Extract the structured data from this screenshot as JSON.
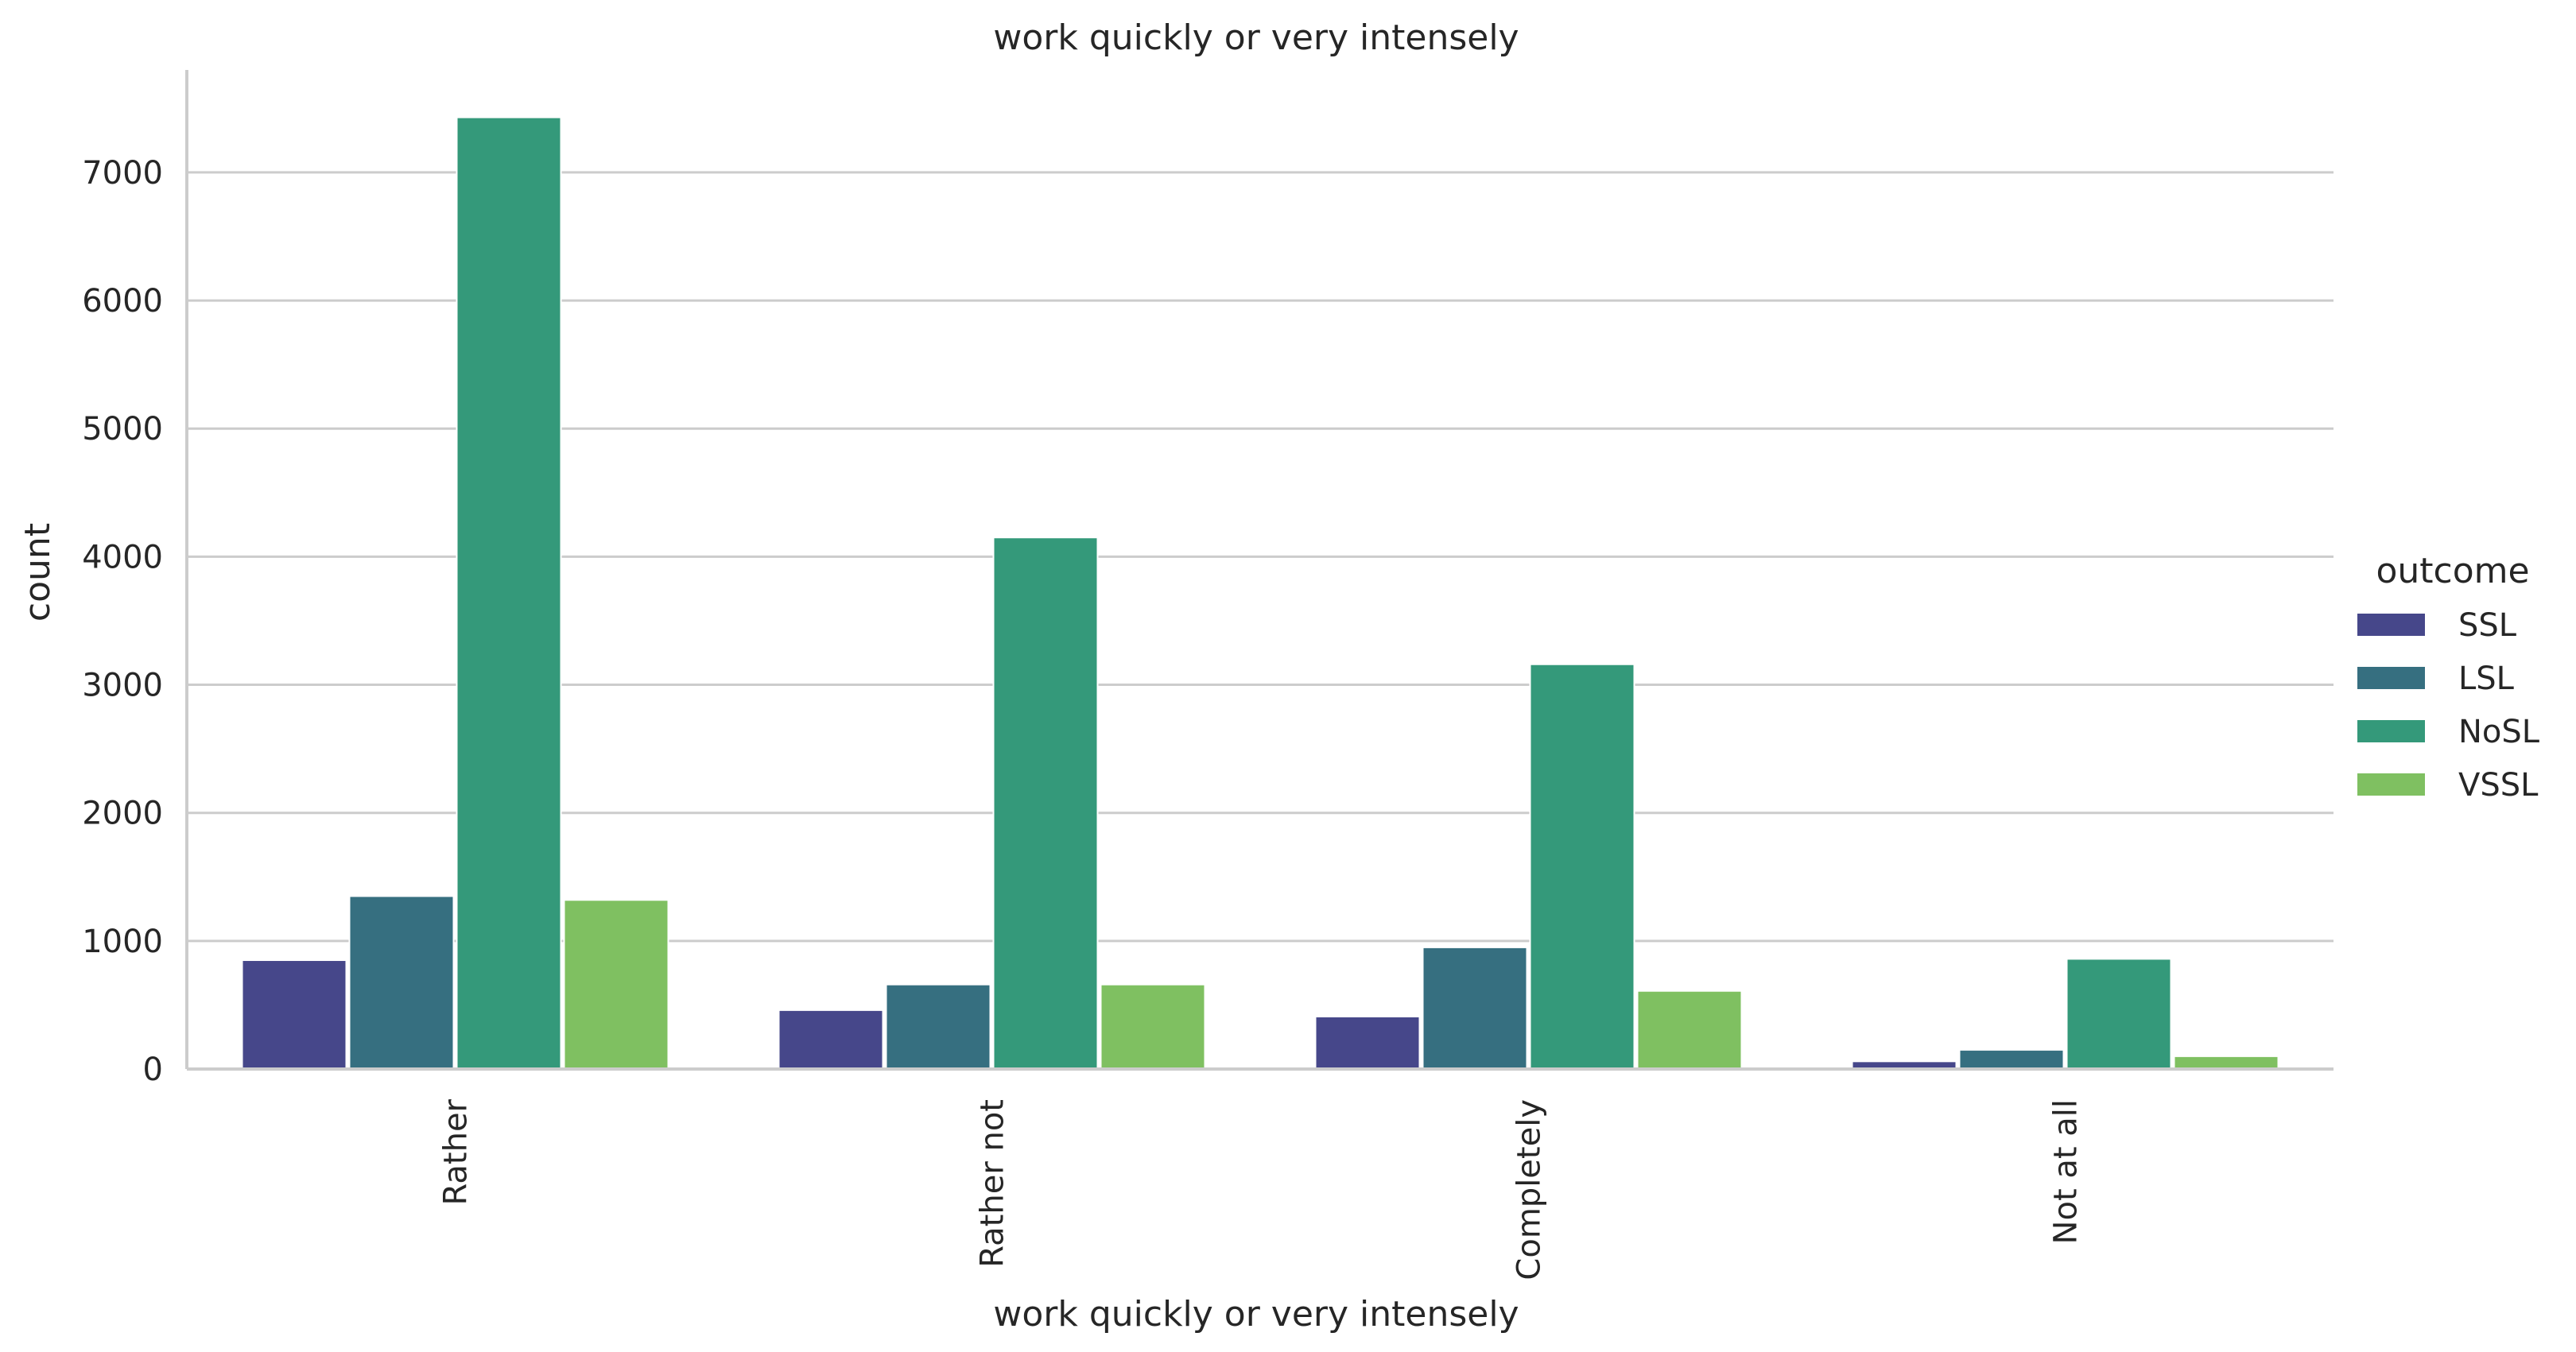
{
  "chart_data": {
    "type": "bar",
    "title": "work quickly or very intensely",
    "xlabel": "work quickly or very intensely",
    "ylabel": "count",
    "categories": [
      "Rather",
      "Rather not",
      "Completely",
      "Not at all"
    ],
    "ylim": [
      0,
      7800
    ],
    "yticks": [
      0,
      1000,
      2000,
      3000,
      4000,
      5000,
      6000,
      7000
    ],
    "grid": true,
    "legend": {
      "title": "outcome",
      "position": "right"
    },
    "series": [
      {
        "name": "SSL",
        "color": "#46478a",
        "values": [
          850,
          460,
          410,
          60
        ]
      },
      {
        "name": "LSL",
        "color": "#366f80",
        "values": [
          1350,
          660,
          950,
          150
        ]
      },
      {
        "name": "NoSL",
        "color": "#34997a",
        "values": [
          7430,
          4150,
          3160,
          860
        ]
      },
      {
        "name": "VSSL",
        "color": "#7fc061",
        "values": [
          1320,
          660,
          610,
          100
        ]
      }
    ]
  }
}
